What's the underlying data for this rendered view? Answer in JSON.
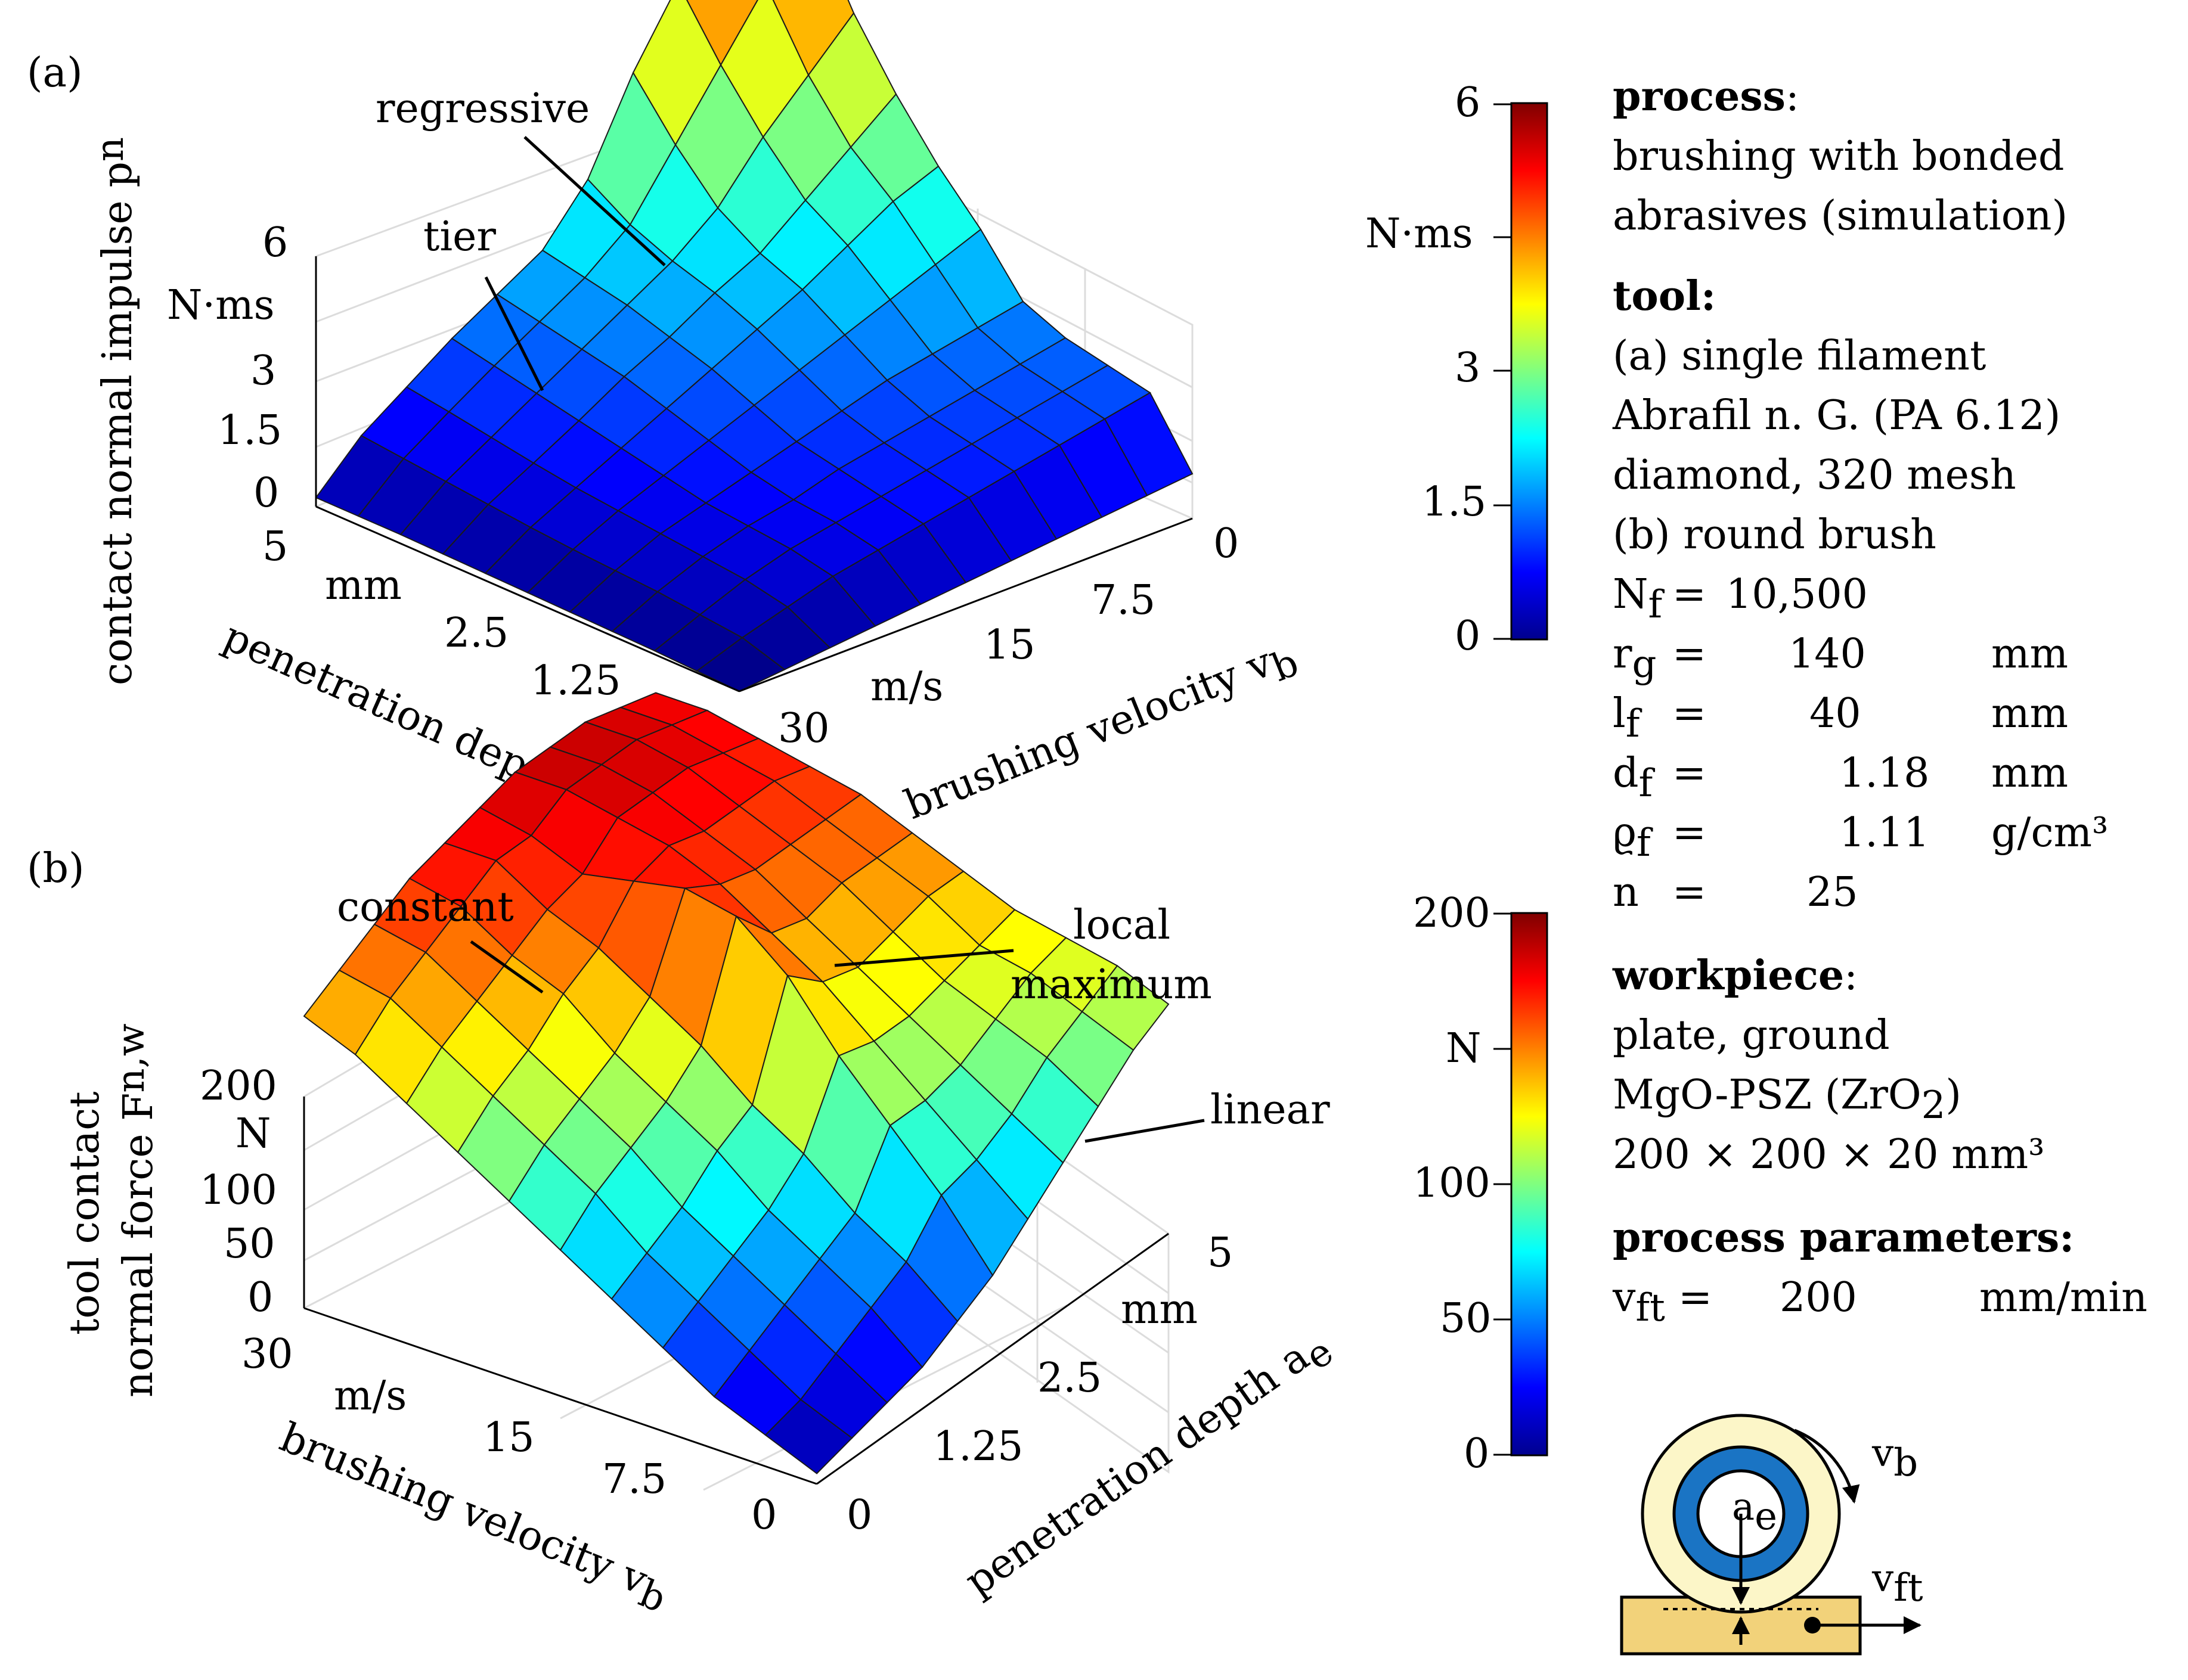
{
  "panel_a": {
    "label": "(a)",
    "zlabel": "contact normal impulse p",
    "zlabel_sub": "n",
    "zunit": "N·ms",
    "zticks": [
      "6",
      "3",
      "1.5",
      "0"
    ],
    "ae_label": "penetration depth a",
    "ae_sub": "e",
    "ae_unit": "mm",
    "ae_ticks": [
      "5",
      "2.5",
      "1.25",
      "0"
    ],
    "vb_label": "brushing velocity v",
    "vb_sub": "b",
    "vb_unit": "m/s",
    "vb_ticks": [
      "0",
      "7.5",
      "15",
      "30"
    ],
    "annotations": [
      "regressive",
      "tier"
    ],
    "colorbar": {
      "unit": "N·ms",
      "ticks": [
        "6",
        "3",
        "1.5",
        "0"
      ]
    }
  },
  "panel_b": {
    "label": "(b)",
    "zlabel_line1": "tool contact",
    "zlabel_line2": "normal force F",
    "zlabel_sub": "n,w",
    "zunit": "N",
    "zticks": [
      "200",
      "100",
      "50",
      "0"
    ],
    "vb_label": "brushing velocity v",
    "vb_sub": "b",
    "vb_unit": "m/s",
    "vb_ticks": [
      "30",
      "15",
      "7.5",
      "0"
    ],
    "ae_label": "penetration depth a",
    "ae_sub": "e",
    "ae_unit": "mm",
    "ae_ticks": [
      "5",
      "2.5",
      "1.25",
      "0"
    ],
    "annotations": [
      "constant",
      "local",
      "maximum",
      "linear"
    ],
    "colorbar": {
      "unit": "N",
      "ticks": [
        "200",
        "100",
        "50",
        "0"
      ]
    }
  },
  "info": {
    "process_head": "process",
    "process_lines": [
      "brushing with bonded",
      "abrasives (simulation)"
    ],
    "tool_head": "tool:",
    "tool_lines": [
      "(a) single filament",
      "Abrafil n. G. (PA 6.12)",
      "diamond, 320 mesh",
      "(b) round brush"
    ],
    "params": [
      {
        "sym": "N",
        "sub": "f",
        "eq": "=",
        "val": "10,500",
        "unit": ""
      },
      {
        "sym": "r",
        "sub": "g",
        "eq": "=",
        "val": "140",
        "unit": "mm"
      },
      {
        "sym": "l",
        "sub": "f",
        "eq": "=",
        "val": "40",
        "unit": "mm"
      },
      {
        "sym": "d",
        "sub": "f",
        "eq": "=",
        "val": "1.18",
        "unit": "mm"
      },
      {
        "sym": "ϱ",
        "sub": "f",
        "eq": "=",
        "val": "1.11",
        "unit": "g/cm³"
      },
      {
        "sym": "n",
        "sub": "",
        "eq": "=",
        "val": "25",
        "unit": ""
      }
    ],
    "workpiece_head": "workpiece",
    "workpiece_lines": [
      "plate, ground",
      "MgO-PSZ (ZrO",
      "200 × 200 × 20 mm³"
    ],
    "pp_head": "process parameters:",
    "vft": {
      "sym": "v",
      "sub": "ft",
      "eq": "=",
      "val": "200",
      "unit": "mm/min"
    }
  },
  "schematic": {
    "vb": "v",
    "vb_sub": "b",
    "ae": "a",
    "ae_sub": "e",
    "vft": "v",
    "vft_sub": "ft"
  },
  "chart_data": [
    {
      "type": "surface",
      "title": "(a)",
      "x_name": "penetration depth a_e (mm)",
      "x": [
        0,
        0.5,
        1,
        1.5,
        2,
        2.5,
        3,
        3.5,
        4,
        4.5,
        5
      ],
      "y_name": "brushing velocity v_b (m/s)",
      "y": [
        0,
        3,
        6,
        9,
        12,
        15,
        18,
        21,
        24,
        27,
        30
      ],
      "z_name": "contact normal impulse p_n (N·ms)",
      "zlim": [
        0,
        6
      ],
      "colormap": "jet",
      "z": [
        [
          0.0,
          0.02,
          0.04,
          0.05,
          0.06,
          0.07,
          0.08,
          0.09,
          0.1,
          0.1,
          0.1
        ],
        [
          0.05,
          0.2,
          0.25,
          0.3,
          0.33,
          0.36,
          0.4,
          0.45,
          0.5,
          0.55,
          0.6
        ],
        [
          0.1,
          0.35,
          0.45,
          0.5,
          0.55,
          0.6,
          0.65,
          0.72,
          0.8,
          0.88,
          0.95
        ],
        [
          0.15,
          0.5,
          0.6,
          0.65,
          0.7,
          0.8,
          0.9,
          1.0,
          1.1,
          1.2,
          1.3
        ],
        [
          0.2,
          0.6,
          0.7,
          0.75,
          0.85,
          1.0,
          1.15,
          1.3,
          1.4,
          1.5,
          1.6
        ],
        [
          0.25,
          0.7,
          0.8,
          0.9,
          1.0,
          1.2,
          1.4,
          1.55,
          1.7,
          1.8,
          1.9
        ],
        [
          0.3,
          0.8,
          0.9,
          1.0,
          1.15,
          1.4,
          1.65,
          1.85,
          2.0,
          2.2,
          2.5
        ],
        [
          0.35,
          0.9,
          1.0,
          1.1,
          1.3,
          1.6,
          1.9,
          2.1,
          2.4,
          2.9,
          3.5
        ],
        [
          0.4,
          1.0,
          1.1,
          1.2,
          1.4,
          1.8,
          2.2,
          2.5,
          3.0,
          3.6,
          4.3
        ],
        [
          0.45,
          1.1,
          1.2,
          1.3,
          1.5,
          2.0,
          2.5,
          2.9,
          3.5,
          4.3,
          5.0
        ],
        [
          0.5,
          1.2,
          1.3,
          1.4,
          1.6,
          2.2,
          2.7,
          3.3,
          4.0,
          4.9,
          5.9
        ]
      ]
    },
    {
      "type": "surface",
      "title": "(b)",
      "x_name": "brushing velocity v_b (m/s)",
      "x": [
        0,
        3,
        6,
        9,
        12,
        15,
        18,
        21,
        24,
        27,
        30
      ],
      "y_name": "penetration depth a_e (mm)",
      "y": [
        0,
        0.5,
        1,
        1.5,
        2,
        2.5,
        3,
        3.5,
        4,
        4.5,
        5
      ],
      "z_name": "tool contact normal force F_n,w (N)",
      "zlim": [
        0,
        200
      ],
      "colormap": "jet",
      "z": [
        [
          5,
          15,
          25,
          40,
          55,
          70,
          85,
          100,
          115,
          130,
          140
        ],
        [
          10,
          20,
          35,
          50,
          65,
          85,
          100,
          115,
          130,
          145,
          150
        ],
        [
          15,
          30,
          45,
          60,
          75,
          95,
          110,
          125,
          140,
          155,
          160
        ],
        [
          20,
          40,
          55,
          70,
          90,
          105,
          120,
          140,
          150,
          165,
          170
        ],
        [
          30,
          50,
          65,
          85,
          100,
          120,
          135,
          150,
          160,
          175,
          175
        ],
        [
          40,
          70,
          95,
          120,
          150,
          170,
          175,
          170,
          165,
          175,
          180
        ],
        [
          55,
          75,
          95,
          115,
          135,
          150,
          165,
          175,
          180,
          185,
          185
        ],
        [
          70,
          85,
          100,
          115,
          130,
          145,
          160,
          170,
          180,
          185,
          185
        ],
        [
          85,
          100,
          110,
          120,
          135,
          150,
          160,
          170,
          180,
          185,
          185
        ],
        [
          100,
          110,
          120,
          125,
          140,
          150,
          160,
          170,
          175,
          180,
          180
        ],
        [
          110,
          120,
          125,
          130,
          140,
          150,
          160,
          165,
          170,
          175,
          175
        ]
      ]
    }
  ]
}
